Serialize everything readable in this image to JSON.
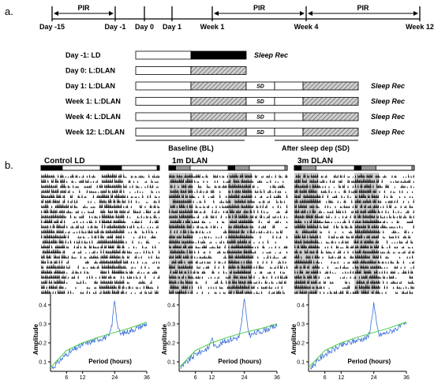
{
  "panels": {
    "a": "a.",
    "b": "b."
  },
  "timeline": {
    "days": [
      "Day -15",
      "Day -1",
      "Day 0",
      "Day 1",
      "Week 1",
      "Week 4",
      "Week 12"
    ],
    "pir_label": "PIR"
  },
  "protocol": {
    "rows": [
      {
        "label": "Day -1: LD",
        "rec": "Sleep Rec",
        "sd": false
      },
      {
        "label": "Day 0: L:DLAN",
        "rec": "",
        "sd": false
      },
      {
        "label": "Day 1: L:DLAN",
        "rec": "Sleep Rec",
        "sd": true
      },
      {
        "label": "Week 1: L:DLAN",
        "rec": "Sleep Rec",
        "sd": true
      },
      {
        "label": "Week 4: L:DLAN",
        "rec": "Sleep Rec",
        "sd": true
      },
      {
        "label": "Week 12: L:DLAN",
        "rec": "Sleep Rec",
        "sd": true
      }
    ],
    "sd_label": "SD",
    "baseline_label": "Baseline (BL)",
    "after_label": "After sleep dep (SD)"
  },
  "actograms": [
    {
      "title": "Control LD",
      "condition": "LD"
    },
    {
      "title": "1m DLAN",
      "condition": "DLAN"
    },
    {
      "title": "3m DLAN",
      "condition": "DLAN"
    }
  ],
  "chart_data": [
    {
      "type": "line",
      "title": "",
      "xlabel": "Period (hours)",
      "ylabel": "Amplitude",
      "xticks": [
        6,
        12,
        24,
        36
      ],
      "yticks": [
        0.1,
        0.2,
        0.3,
        0.4
      ],
      "xlim": [
        0,
        36
      ],
      "ylim": [
        0.05,
        0.47
      ],
      "series": [
        {
          "x": [
            0,
            6,
            12,
            18,
            22,
            23,
            24,
            25,
            26,
            30,
            36
          ],
          "y": [
            0.06,
            0.14,
            0.19,
            0.22,
            0.235,
            0.3,
            0.43,
            0.3,
            0.245,
            0.265,
            0.3
          ]
        },
        {
          "x": [
            0,
            6,
            12,
            18,
            24,
            30,
            36
          ],
          "y": [
            0.07,
            0.16,
            0.2,
            0.23,
            0.255,
            0.28,
            0.31
          ]
        }
      ]
    },
    {
      "type": "line",
      "title": "",
      "xlabel": "Period (hours)",
      "ylabel": "Amplitude",
      "xticks": [
        6,
        12,
        24,
        36
      ],
      "yticks": [
        0.1,
        0.2,
        0.3,
        0.4
      ],
      "xlim": [
        0,
        36
      ],
      "ylim": [
        0.05,
        0.47
      ],
      "series": [
        {
          "x": [
            0,
            6,
            11,
            12,
            13,
            18,
            22,
            23,
            24,
            25,
            26,
            30,
            36
          ],
          "y": [
            0.06,
            0.14,
            0.175,
            0.23,
            0.18,
            0.215,
            0.23,
            0.3,
            0.44,
            0.3,
            0.24,
            0.26,
            0.29
          ]
        },
        {
          "x": [
            0,
            6,
            12,
            18,
            24,
            30,
            36
          ],
          "y": [
            0.07,
            0.16,
            0.2,
            0.23,
            0.255,
            0.275,
            0.3
          ]
        }
      ]
    },
    {
      "type": "line",
      "title": "",
      "xlabel": "Period (hours)",
      "ylabel": "Amplitude",
      "xticks": [
        6,
        12,
        24,
        36
      ],
      "yticks": [
        0.1,
        0.2,
        0.3,
        0.4
      ],
      "xlim": [
        0,
        36
      ],
      "ylim": [
        0.05,
        0.47
      ],
      "series": [
        {
          "x": [
            0,
            6,
            12,
            18,
            22,
            23,
            24,
            25,
            26,
            30,
            36
          ],
          "y": [
            0.06,
            0.14,
            0.185,
            0.215,
            0.23,
            0.3,
            0.41,
            0.3,
            0.24,
            0.26,
            0.3
          ]
        },
        {
          "x": [
            0,
            6,
            12,
            18,
            24,
            30,
            36
          ],
          "y": [
            0.07,
            0.16,
            0.2,
            0.23,
            0.255,
            0.28,
            0.31
          ]
        }
      ]
    }
  ],
  "colors": {
    "data_line": "#3a6fd8",
    "fit_line": "#44cc44",
    "dark": "#000000",
    "dlan_bar": "#9a9a9a"
  }
}
